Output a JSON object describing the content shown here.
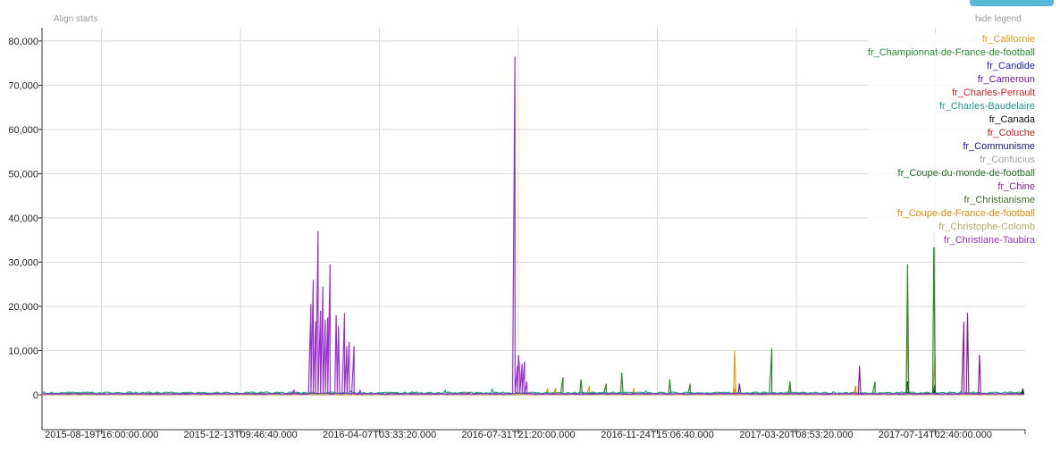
{
  "controls": {
    "align_starts": "Align starts",
    "hide_legend": "hide legend"
  },
  "chart_data": {
    "type": "line",
    "ylim": [
      0,
      83000
    ],
    "y_ticks": [
      0,
      10000,
      20000,
      30000,
      40000,
      50000,
      60000,
      70000,
      80000
    ],
    "y_tick_labels": [
      "0",
      "10,000",
      "20,000",
      "30,000",
      "40,000",
      "50,000",
      "60,000",
      "70,000",
      "80,000"
    ],
    "x_ticks": [
      "2015-08-19T16:00:00.000",
      "2015-12-13T09:46:40.000",
      "2016-04-07T03:33:20.000",
      "2016-07-31T21:20:00.000",
      "2016-11-24T15:06:40.000",
      "2017-03-20T08:53:20.000",
      "2017-07-14T02:40:00.000"
    ],
    "x_start": "2015-07-01",
    "x_end": "2017-09-27",
    "grid": true,
    "legend_position": "top-right",
    "series": [
      {
        "name": "fr_Californie",
        "color": "#e69b1a",
        "baseline": 150,
        "peaks": [
          [
            "2016-07-30",
            300
          ],
          [
            "2016-08-25",
            1500
          ],
          [
            "2016-09-29",
            2000
          ],
          [
            "2016-11-05",
            1500
          ],
          [
            "2017-01-28",
            10000
          ],
          [
            "2017-03-15",
            1500
          ],
          [
            "2017-06-21",
            17000
          ],
          [
            "2017-07-14",
            9000
          ]
        ]
      },
      {
        "name": "fr_Championnat-de-France-de-football",
        "color": "#2a8a2a",
        "baseline": 250,
        "peaks": [
          [
            "2016-09-07",
            4000
          ],
          [
            "2016-09-22",
            3500
          ],
          [
            "2016-10-13",
            2500
          ],
          [
            "2016-10-26",
            5000
          ],
          [
            "2016-12-05",
            3500
          ],
          [
            "2016-12-22",
            2500
          ],
          [
            "2017-02-28",
            10500
          ],
          [
            "2017-03-15",
            3000
          ],
          [
            "2017-05-25",
            3000
          ],
          [
            "2017-06-21",
            29500
          ],
          [
            "2017-07-13",
            37000
          ]
        ]
      },
      {
        "name": "fr_Candide",
        "color": "#1c1cbd",
        "baseline": 80,
        "peaks": []
      },
      {
        "name": "fr_Cameroun",
        "color": "#6a1a9a",
        "baseline": 120,
        "peaks": [
          [
            "2017-02-01",
            2500
          ]
        ]
      },
      {
        "name": "fr_Charles-Perrault",
        "color": "#d42020",
        "baseline": 100,
        "peaks": [
          [
            "2016-07-31",
            700
          ]
        ]
      },
      {
        "name": "fr_Charles-Baudelaire",
        "color": "#239a8f",
        "baseline": 450,
        "peaks": [
          [
            "2016-03-15",
            900
          ],
          [
            "2016-06-01",
            1000
          ],
          [
            "2016-07-10",
            1300
          ],
          [
            "2016-11-15",
            900
          ],
          [
            "2017-04-20",
            700
          ],
          [
            "2017-08-05",
            800
          ]
        ]
      },
      {
        "name": "fr_Canada",
        "color": "#111111",
        "baseline": 150,
        "peaks": [
          [
            "2017-06-21",
            3000
          ],
          [
            "2017-07-14",
            1200
          ],
          [
            "2017-09-25",
            1200
          ]
        ]
      },
      {
        "name": "fr_Coluche",
        "color": "#b82020",
        "baseline": 100,
        "peaks": [
          [
            "2016-06-20",
            500
          ]
        ]
      },
      {
        "name": "fr_Communisme",
        "color": "#17177a",
        "baseline": 120,
        "peaks": []
      },
      {
        "name": "fr_Confucius",
        "color": "#a8a8a8",
        "baseline": 60,
        "peaks": []
      },
      {
        "name": "fr_Coupe-du-monde-de-football",
        "color": "#1c6e1c",
        "baseline": 150,
        "peaks": [
          [
            "2017-06-21",
            3000
          ],
          [
            "2017-07-14",
            2500
          ]
        ]
      },
      {
        "name": "fr_Chine",
        "color": "#8a1d9a",
        "baseline": 150,
        "peaks": [
          [
            "2017-05-12",
            6500
          ],
          [
            "2017-08-07",
            16500
          ],
          [
            "2017-08-10",
            18500
          ],
          [
            "2017-08-20",
            9000
          ]
        ]
      },
      {
        "name": "fr_Christianisme",
        "color": "#4a6a35",
        "baseline": 120,
        "peaks": []
      },
      {
        "name": "fr_Coupe-de-France-de-football",
        "color": "#d98a10",
        "baseline": 100,
        "peaks": [
          [
            "2016-09-01",
            1500
          ],
          [
            "2017-01-28",
            1500
          ],
          [
            "2017-05-09",
            2000
          ]
        ]
      },
      {
        "name": "fr_Christophe-Colomb",
        "color": "#b8aa6a",
        "baseline": 80,
        "peaks": []
      },
      {
        "name": "fr_Christiane-Taubira",
        "color": "#9932cc",
        "baseline": 200,
        "peaks": [
          [
            "2016-01-27",
            1200
          ],
          [
            "2016-02-10",
            20500
          ],
          [
            "2016-02-12",
            26000
          ],
          [
            "2016-02-14",
            16500
          ],
          [
            "2016-02-16",
            37000
          ],
          [
            "2016-02-18",
            19000
          ],
          [
            "2016-02-20",
            24500
          ],
          [
            "2016-02-22",
            17000
          ],
          [
            "2016-02-24",
            17500
          ],
          [
            "2016-02-26",
            29500
          ],
          [
            "2016-03-02",
            18000
          ],
          [
            "2016-03-04",
            15500
          ],
          [
            "2016-03-09",
            18500
          ],
          [
            "2016-03-11",
            11000
          ],
          [
            "2016-03-13",
            12000
          ],
          [
            "2016-03-17",
            11000
          ],
          [
            "2016-03-22",
            1000
          ],
          [
            "2016-07-29",
            76500
          ],
          [
            "2016-07-31",
            6500
          ],
          [
            "2016-08-01",
            9000
          ],
          [
            "2016-08-02",
            5000
          ],
          [
            "2016-08-04",
            7000
          ],
          [
            "2016-08-06",
            7500
          ],
          [
            "2016-08-08",
            3000
          ],
          [
            "2016-08-10",
            500
          ]
        ]
      }
    ]
  }
}
